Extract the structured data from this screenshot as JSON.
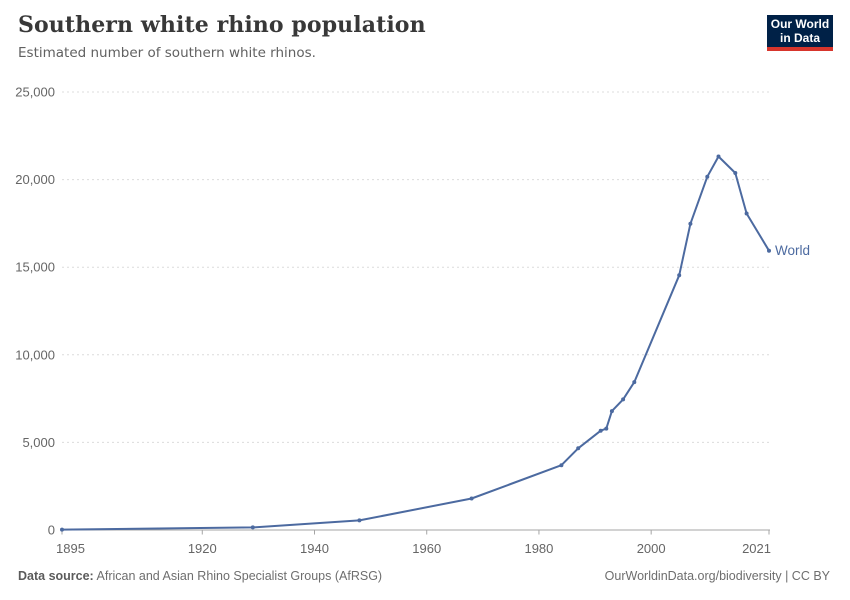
{
  "header": {
    "title": "Southern white rhino population",
    "subtitle": "Estimated number of southern white rhinos.",
    "logo": {
      "line1": "Our World",
      "line2": "in Data"
    }
  },
  "chart_data": {
    "type": "line",
    "title": "Southern white rhino population",
    "subtitle": "Estimated number of southern white rhinos.",
    "xlabel": "",
    "ylabel": "",
    "xlim": [
      1895,
      2021
    ],
    "ylim": [
      0,
      25000
    ],
    "x_ticks": [
      1895,
      1920,
      1940,
      1960,
      1980,
      2000,
      2021
    ],
    "y_ticks": [
      0,
      5000,
      10000,
      15000,
      20000,
      25000
    ],
    "grid": "horizontal-dashed",
    "legend_position": "end-of-line-label",
    "series": [
      {
        "name": "World",
        "points": [
          [
            1895,
            20
          ],
          [
            1929,
            150
          ],
          [
            1948,
            550
          ],
          [
            1968,
            1800
          ],
          [
            1984,
            3700
          ],
          [
            1987,
            4665
          ],
          [
            1991,
            5670
          ],
          [
            1992,
            5790
          ],
          [
            1993,
            6784
          ],
          [
            1995,
            7452
          ],
          [
            1997,
            8440
          ],
          [
            2005,
            14540
          ],
          [
            2007,
            17480
          ],
          [
            2010,
            20165
          ],
          [
            2012,
            21316
          ],
          [
            2015,
            20378
          ],
          [
            2017,
            18064
          ],
          [
            2021,
            15942
          ]
        ]
      }
    ]
  },
  "colors": {
    "line": "#4c6aa0",
    "grid": "#dcdcdc",
    "axis": "#a5a5a5",
    "tick_label": "#666666",
    "title": "#383838",
    "subtitle": "#616161",
    "logo_bg": "#002147",
    "logo_accent": "#d7352c"
  },
  "footer": {
    "datasource_label": "Data source:",
    "datasource": "African and Asian Rhino Specialist Groups (AfRSG)",
    "credit": "OurWorldinData.org/biodiversity | CC BY"
  }
}
